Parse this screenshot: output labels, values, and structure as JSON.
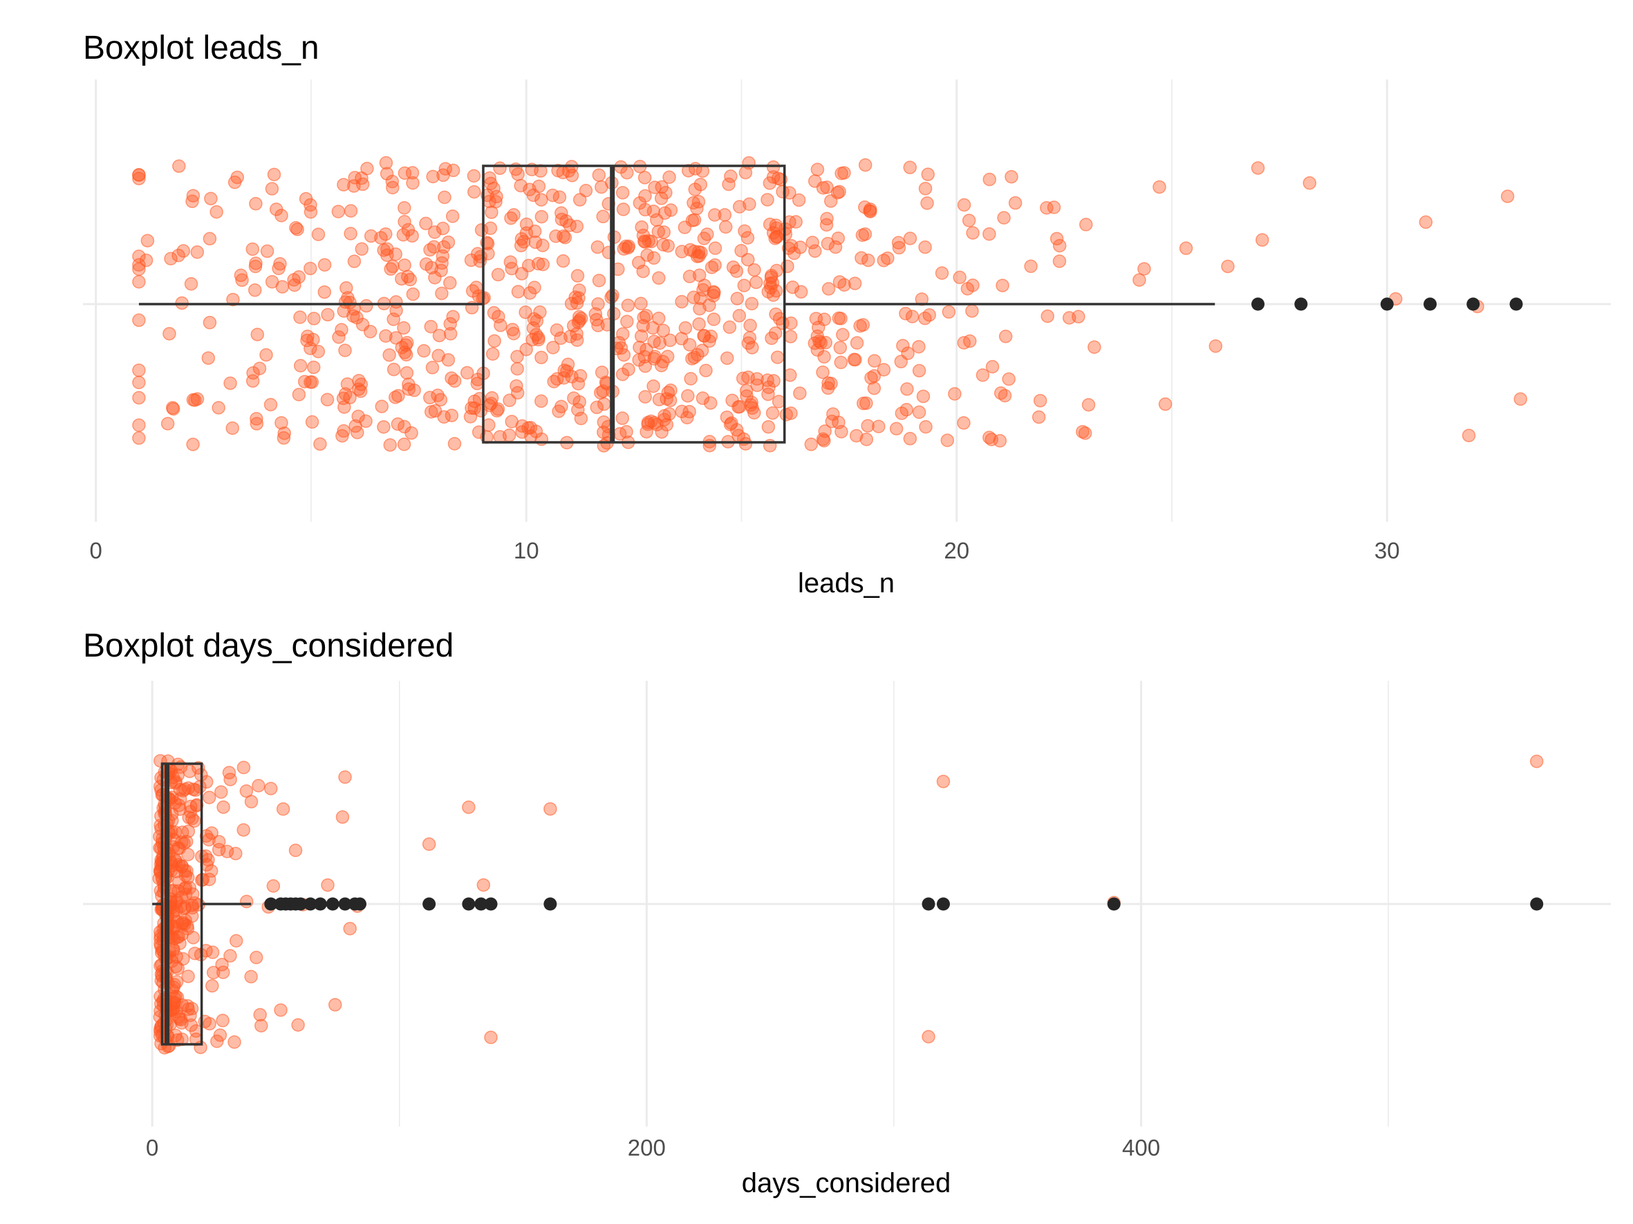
{
  "chart_data": [
    {
      "type": "boxplot",
      "title": "Boxplot leads_n",
      "xlabel": "leads_n",
      "ylabel": "",
      "xlim": [
        -0.3,
        35.2
      ],
      "major_ticks": [
        0,
        10,
        20,
        30
      ],
      "tick_labels": [
        "0",
        "10",
        "20",
        "30"
      ],
      "minor_ticks": [
        5,
        15,
        25
      ],
      "grid": true,
      "stats": {
        "min": 1,
        "q1": 9,
        "median": 12,
        "q3": 16,
        "whisker_high": 26
      },
      "outliers": [
        27,
        28,
        30,
        31,
        32,
        33
      ],
      "jitter": {
        "n": 820,
        "seed": 7,
        "description": "jittered raw observations",
        "value_range": [
          1,
          33
        ],
        "peak": 12,
        "spread": 5.2,
        "sparse_extremes": [
          1,
          1.2,
          1.8,
          2,
          2.3,
          26.3,
          27,
          27.1,
          28.2,
          30.2,
          30.9,
          31.9,
          32.1,
          32.8,
          33.1
        ]
      },
      "colors": {
        "jitter": "#ff5722",
        "box": "#333333",
        "outlier": "#262626",
        "grid": "#ebebeb"
      }
    },
    {
      "type": "boxplot",
      "title": "Boxplot days_considered",
      "xlabel": "days_considered",
      "ylabel": "",
      "xlim": [
        -28,
        590
      ],
      "major_ticks": [
        0,
        200,
        400
      ],
      "tick_labels": [
        "0",
        "200",
        "400"
      ],
      "minor_ticks": [
        100,
        300,
        500
      ],
      "grid": true,
      "stats": {
        "min": 0,
        "q1": 4,
        "median": 6,
        "q3": 20,
        "whisker_high": 40
      },
      "outliers": [
        48,
        52,
        54,
        56,
        58,
        60,
        64,
        68,
        73,
        78,
        82,
        84,
        112,
        128,
        133,
        137,
        161,
        314,
        320,
        389,
        560
      ],
      "jitter": {
        "n": 330,
        "seed": 11,
        "description": "jittered raw observations",
        "value_range": [
          0,
          560
        ],
        "peak": 3,
        "spread": 9,
        "sparse_extremes": [
          8,
          14,
          22,
          27,
          34,
          37,
          40,
          43,
          47,
          48,
          49,
          52,
          53,
          58,
          59,
          61,
          71,
          74,
          77,
          78,
          80,
          83,
          112,
          128,
          134,
          137,
          161,
          314,
          320,
          389,
          560
        ]
      },
      "colors": {
        "jitter": "#ff5722",
        "box": "#333333",
        "outlier": "#262626",
        "grid": "#ebebeb"
      }
    }
  ]
}
